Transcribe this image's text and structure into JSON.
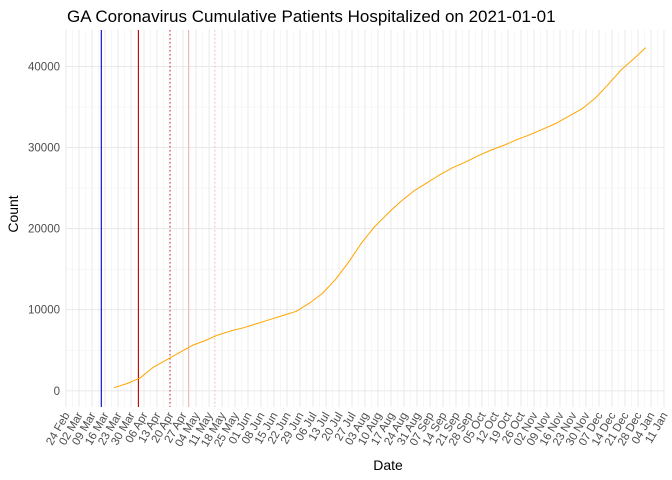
{
  "chart_data": {
    "type": "line",
    "title": "GA Coronavirus Cumulative Patients Hospitalized on 2021-01-01",
    "xlabel": "Date",
    "ylabel": "Count",
    "xlim": [
      "2020-02-24",
      "2021-01-11"
    ],
    "ylim": [
      -2000,
      44500
    ],
    "y_ticks": [
      0,
      10000,
      20000,
      30000,
      40000
    ],
    "x_ticks": [
      "2020-02-24",
      "2020-03-02",
      "2020-03-09",
      "2020-03-16",
      "2020-03-23",
      "2020-03-30",
      "2020-04-06",
      "2020-04-13",
      "2020-04-20",
      "2020-04-27",
      "2020-05-04",
      "2020-05-11",
      "2020-05-18",
      "2020-05-25",
      "2020-06-01",
      "2020-06-08",
      "2020-06-15",
      "2020-06-22",
      "2020-06-29",
      "2020-07-06",
      "2020-07-13",
      "2020-07-20",
      "2020-07-27",
      "2020-08-03",
      "2020-08-10",
      "2020-08-17",
      "2020-08-24",
      "2020-08-31",
      "2020-09-07",
      "2020-09-14",
      "2020-09-21",
      "2020-09-28",
      "2020-10-05",
      "2020-10-12",
      "2020-10-19",
      "2020-10-26",
      "2020-11-02",
      "2020-11-09",
      "2020-11-16",
      "2020-11-23",
      "2020-11-30",
      "2020-12-07",
      "2020-12-14",
      "2020-12-21",
      "2020-12-28",
      "2021-01-04",
      "2021-01-11"
    ],
    "x_tick_labels": [
      "24 Feb",
      "02 Mar",
      "09 Mar",
      "16 Mar",
      "23 Mar",
      "30 Mar",
      "06 Apr",
      "13 Apr",
      "20 Apr",
      "27 Apr",
      "04 May",
      "11 May",
      "18 May",
      "25 May",
      "01 Jun",
      "08 Jun",
      "15 Jun",
      "22 Jun",
      "29 Jun",
      "06 Jul",
      "13 Jul",
      "20 Jul",
      "27 Jul",
      "03 Aug",
      "10 Aug",
      "17 Aug",
      "24 Aug",
      "31 Aug",
      "07 Sep",
      "14 Sep",
      "21 Sep",
      "28 Sep",
      "05 Oct",
      "12 Oct",
      "19 Oct",
      "26 Oct",
      "02 Nov",
      "09 Nov",
      "16 Nov",
      "23 Nov",
      "30 Nov",
      "07 Dec",
      "14 Dec",
      "21 Dec",
      "28 Dec",
      "04 Jan",
      "11 Jan"
    ],
    "grid": true,
    "reference_lines": [
      {
        "x": "2020-03-14",
        "color": "#0000cc",
        "style": "solid"
      },
      {
        "x": "2020-04-03",
        "color": "#cc0000",
        "style": "solid"
      },
      {
        "x": "2020-04-20",
        "color": "#cc3333",
        "style": "dotted"
      },
      {
        "x": "2020-04-30",
        "color": "#f2b8b8",
        "style": "solid"
      },
      {
        "x": "2020-05-14",
        "color": "#f2c4c4",
        "style": "dotted"
      }
    ],
    "series": [
      {
        "color": "#ffa500",
        "points": [
          [
            "2020-03-21",
            400
          ],
          [
            "2020-03-28",
            900
          ],
          [
            "2020-04-04",
            1600
          ],
          [
            "2020-04-11",
            2900
          ],
          [
            "2020-04-18",
            3800
          ],
          [
            "2020-04-25",
            4700
          ],
          [
            "2020-05-02",
            5600
          ],
          [
            "2020-05-09",
            6200
          ],
          [
            "2020-05-16",
            6900
          ],
          [
            "2020-05-23",
            7400
          ],
          [
            "2020-05-30",
            7800
          ],
          [
            "2020-06-06",
            8300
          ],
          [
            "2020-06-13",
            8800
          ],
          [
            "2020-06-20",
            9300
          ],
          [
            "2020-06-27",
            9800
          ],
          [
            "2020-07-04",
            10800
          ],
          [
            "2020-07-11",
            12000
          ],
          [
            "2020-07-18",
            13700
          ],
          [
            "2020-07-25",
            15800
          ],
          [
            "2020-08-01",
            18200
          ],
          [
            "2020-08-08",
            20200
          ],
          [
            "2020-08-15",
            21800
          ],
          [
            "2020-08-22",
            23300
          ],
          [
            "2020-08-29",
            24600
          ],
          [
            "2020-09-05",
            25600
          ],
          [
            "2020-09-12",
            26600
          ],
          [
            "2020-09-19",
            27500
          ],
          [
            "2020-09-26",
            28200
          ],
          [
            "2020-10-03",
            29000
          ],
          [
            "2020-10-10",
            29700
          ],
          [
            "2020-10-17",
            30300
          ],
          [
            "2020-10-24",
            31000
          ],
          [
            "2020-10-31",
            31600
          ],
          [
            "2020-11-07",
            32300
          ],
          [
            "2020-11-14",
            33000
          ],
          [
            "2020-11-21",
            33900
          ],
          [
            "2020-11-28",
            34800
          ],
          [
            "2020-12-05",
            36100
          ],
          [
            "2020-12-12",
            37800
          ],
          [
            "2020-12-19",
            39600
          ],
          [
            "2020-12-26",
            41000
          ],
          [
            "2021-01-01",
            42300
          ]
        ]
      }
    ]
  }
}
